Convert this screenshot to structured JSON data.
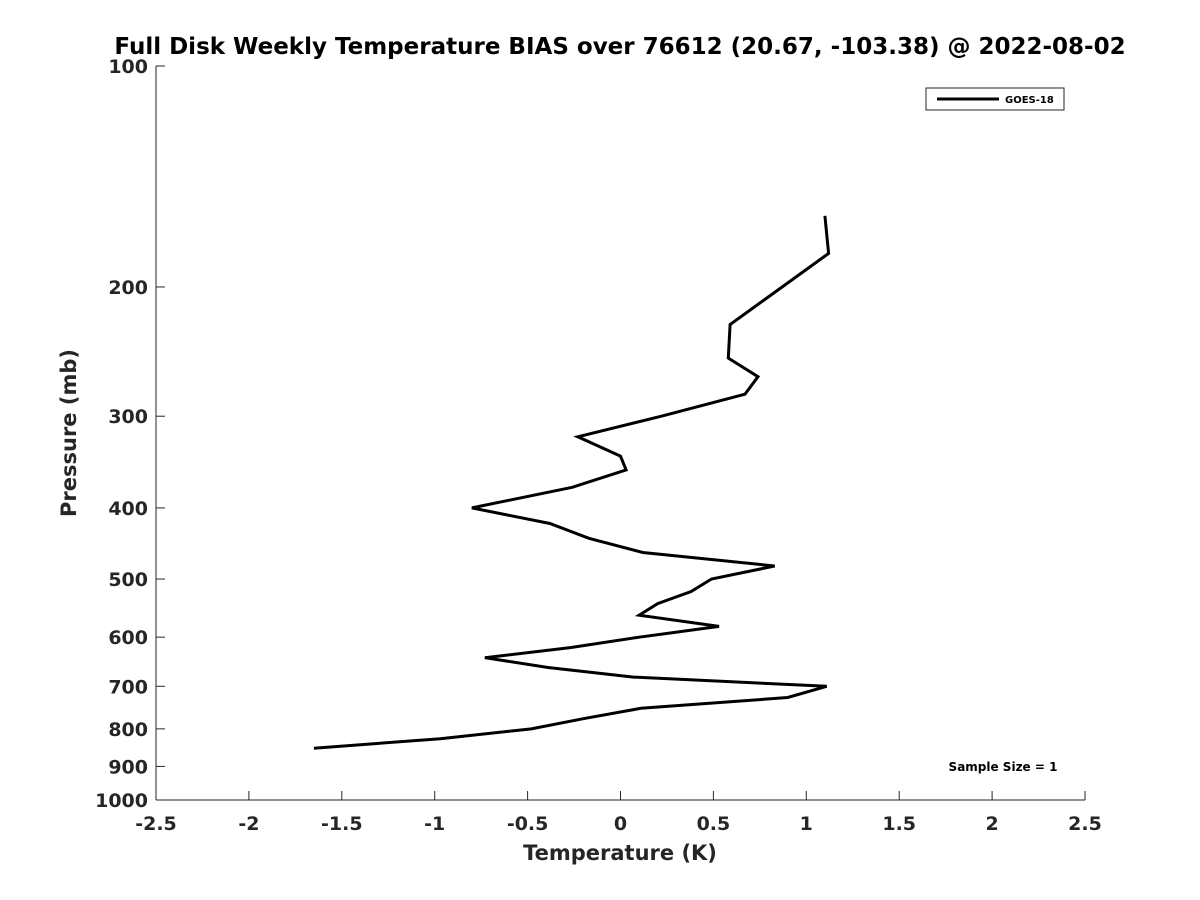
{
  "chart_data": {
    "type": "line",
    "title": "Full Disk Weekly Temperature BIAS over 76612 (20.67, -103.38) @ 2022-08-02",
    "xlabel": "Temperature (K)",
    "ylabel": "Pressure (mb)",
    "xlim": [
      -2.5,
      2.5
    ],
    "ylim": [
      100,
      1000
    ],
    "y_scale": "log",
    "y_reversed": true,
    "xticks": [
      "-2.5",
      "-2",
      "-1.5",
      "-1",
      "-0.5",
      "0",
      "0.5",
      "1",
      "1.5",
      "2",
      "2.5"
    ],
    "yticks": [
      "100",
      "200",
      "300",
      "400",
      "500",
      "600",
      "700",
      "800",
      "900",
      "1000"
    ],
    "grid": false,
    "legend_position": "top-right",
    "series": [
      {
        "name": "GOES-18",
        "color": "#000000",
        "points": [
          {
            "x": 1.1,
            "y": 160
          },
          {
            "x": 1.12,
            "y": 180
          },
          {
            "x": 0.87,
            "y": 200
          },
          {
            "x": 0.59,
            "y": 225
          },
          {
            "x": 0.58,
            "y": 250
          },
          {
            "x": 0.74,
            "y": 265
          },
          {
            "x": 0.67,
            "y": 280
          },
          {
            "x": 0.22,
            "y": 300
          },
          {
            "x": -0.23,
            "y": 320
          },
          {
            "x": 0.0,
            "y": 340
          },
          {
            "x": 0.03,
            "y": 355
          },
          {
            "x": -0.26,
            "y": 375
          },
          {
            "x": -0.8,
            "y": 400
          },
          {
            "x": -0.38,
            "y": 420
          },
          {
            "x": -0.17,
            "y": 440
          },
          {
            "x": 0.12,
            "y": 460
          },
          {
            "x": 0.83,
            "y": 480
          },
          {
            "x": 0.49,
            "y": 500
          },
          {
            "x": 0.38,
            "y": 520
          },
          {
            "x": 0.2,
            "y": 540
          },
          {
            "x": 0.1,
            "y": 560
          },
          {
            "x": 0.53,
            "y": 580
          },
          {
            "x": 0.1,
            "y": 600
          },
          {
            "x": -0.27,
            "y": 620
          },
          {
            "x": -0.73,
            "y": 640
          },
          {
            "x": -0.39,
            "y": 660
          },
          {
            "x": 0.07,
            "y": 680
          },
          {
            "x": 1.11,
            "y": 700
          },
          {
            "x": 0.9,
            "y": 725
          },
          {
            "x": 0.11,
            "y": 750
          },
          {
            "x": -0.2,
            "y": 775
          },
          {
            "x": -0.48,
            "y": 800
          },
          {
            "x": -0.97,
            "y": 825
          },
          {
            "x": -1.65,
            "y": 850
          }
        ]
      }
    ],
    "annotations": [
      "Sample Size = 1"
    ]
  }
}
